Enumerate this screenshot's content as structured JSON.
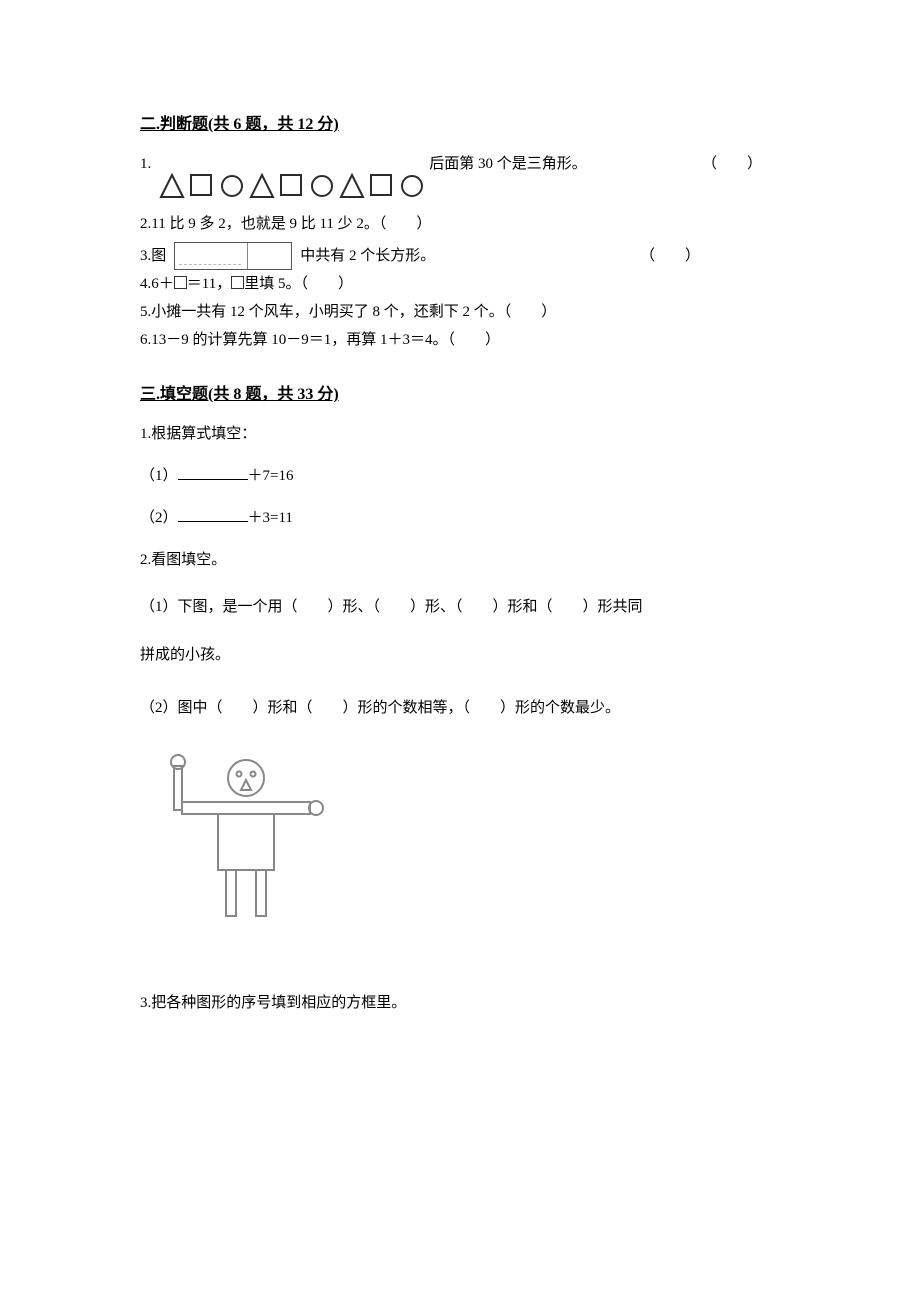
{
  "section2": {
    "heading": "二.判断题(共 6 题，共 12 分)",
    "q1": {
      "num": "1.",
      "tail": "后面第 30 个是三角形。",
      "paren": "（　　）",
      "shapes": {
        "stroke": "#2b2b2b",
        "stroke_width": 2,
        "size": 26,
        "sequence": [
          "triangle",
          "square",
          "circle",
          "triangle",
          "square",
          "circle",
          "triangle",
          "square",
          "circle"
        ]
      }
    },
    "q2": "2.11 比 9 多 2，也就是 9 比 11 少 2。（　　）",
    "q3": {
      "pre": "3.图",
      "post": "中共有 2 个长方形。",
      "paren": "（　　）"
    },
    "q4": {
      "pre": "4.6＋",
      "after_box": "＝11，",
      "post": "里填 5。（　　）"
    },
    "q5": "5.小摊一共有 12 个风车，小明买了 8 个，还剩下 2 个。（　　）",
    "q6": "6.13－9 的计算先算 10－9＝1，再算 1＋3＝4。（　　）"
  },
  "section3": {
    "heading": "三.填空题(共 8 题，共 33 分)",
    "q1": {
      "title": "1.根据算式填空：",
      "a": "（1）",
      "a_tail": "＋7=16",
      "b": "（2）",
      "b_tail": "＋3=11"
    },
    "q2": {
      "title": "2.看图填空。",
      "a": "（1）下图，是一个用（　　）形、（　　）形、（　　）形和（　　）形共同",
      "a2": "拼成的小孩。",
      "b": "（2）图中（　　）形和（　　）形的个数相等，（　　）形的个数最少。",
      "figure": {
        "stroke": "#888888",
        "stroke_width": 2
      }
    },
    "q3": {
      "title": "3.把各种图形的序号填到相应的方框里。"
    }
  }
}
